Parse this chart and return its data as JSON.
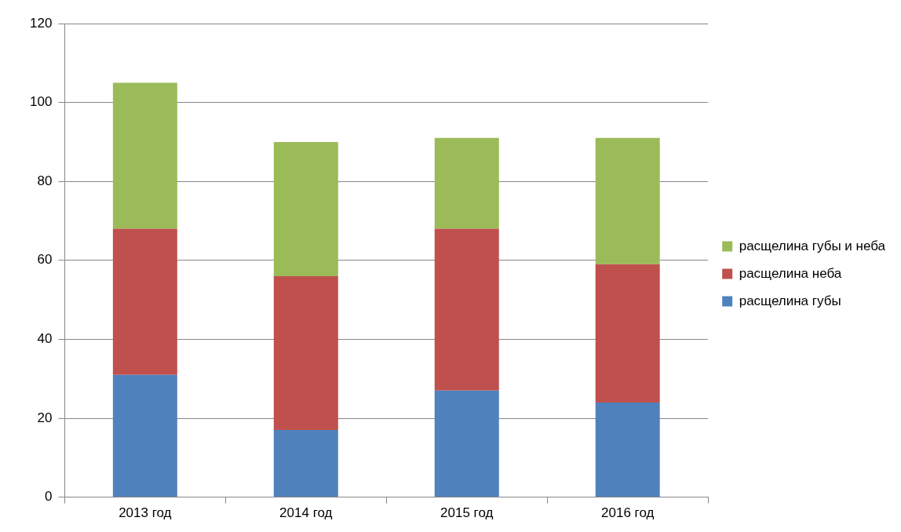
{
  "chart_data": {
    "type": "bar",
    "stacked": true,
    "categories": [
      "2013 год",
      "2014 год",
      "2015 год",
      "2016 год"
    ],
    "series": [
      {
        "name": "расщелина губы",
        "color": "#4f81bd",
        "values": [
          31,
          17,
          27,
          24
        ]
      },
      {
        "name": "расщелина неба",
        "color": "#c0504d",
        "values": [
          37,
          39,
          41,
          35
        ]
      },
      {
        "name": "расщелина губы и неба",
        "color": "#9bbb59",
        "values": [
          37,
          34,
          23,
          32
        ]
      }
    ],
    "ylim": [
      0,
      120
    ],
    "yticks": [
      0,
      20,
      40,
      60,
      80,
      100,
      120
    ],
    "grid": "y",
    "legend": "right"
  }
}
